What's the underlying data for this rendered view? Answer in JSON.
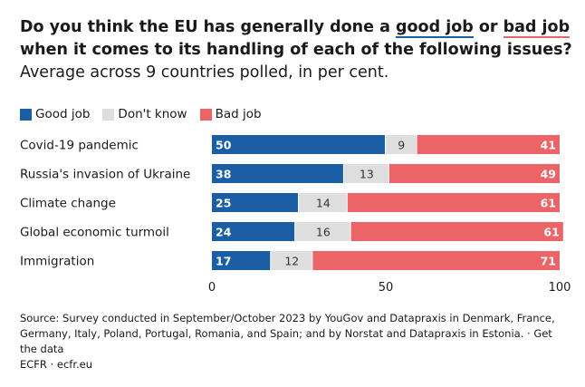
{
  "title": {
    "part1": "Do you think the EU has generally done a",
    "good": "good job",
    "or": "or",
    "bad": "bad job",
    "part2": "when it comes to its handling of each of the following issues?",
    "subtitle": "Average across 9 countries polled, in per cent."
  },
  "legend": {
    "good": "Good job",
    "dontknow": "Don't know",
    "bad": "Bad job"
  },
  "colors": {
    "good": "#1a5fa6",
    "dontknow": "#dedede",
    "bad": "#ec6466"
  },
  "chart_data": {
    "type": "bar",
    "orientation": "horizontal",
    "stacked": true,
    "categories": [
      "Covid-19 pandemic",
      "Russia's invasion of Ukraine",
      "Climate change",
      "Global economic turmoil",
      "Immigration"
    ],
    "series": [
      {
        "name": "Good job",
        "values": [
          50,
          38,
          25,
          24,
          17
        ]
      },
      {
        "name": "Don't know",
        "values": [
          9,
          13,
          14,
          16,
          12
        ]
      },
      {
        "name": "Bad job",
        "values": [
          41,
          49,
          61,
          61,
          71
        ]
      }
    ],
    "xlim": [
      0,
      100
    ],
    "xticks": [
      "0",
      "50",
      "100"
    ],
    "grid": false,
    "legend_position": "top-left"
  },
  "footer": {
    "source": "Source: Survey conducted in September/October 2023 by YouGov and Datapraxis in Denmark, France, Germany, Italy, Poland, Portugal, Romania, and Spain; and by Norstat and Datapraxis in Estonia. · Get the data",
    "credit": "ECFR · ecfr.eu"
  }
}
